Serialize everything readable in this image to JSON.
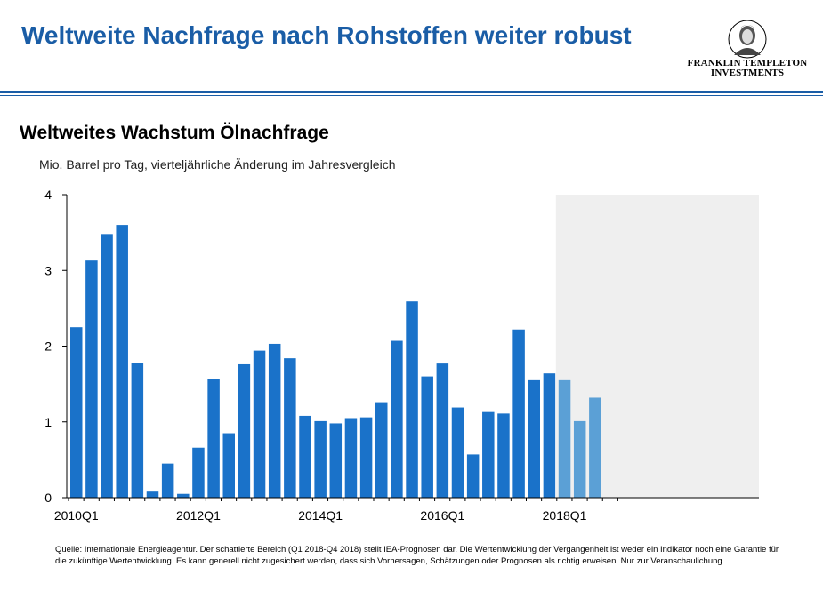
{
  "slide": {
    "title": "Weltweite Nachfrage nach Rohstoffen weiter robust"
  },
  "logo": {
    "line1": "FRANKLIN TEMPLETON",
    "line2": "INVESTMENTS"
  },
  "chart_data": {
    "type": "bar",
    "title": "Weltweites Wachstum Ölnachfrage",
    "subtitle": "Mio. Barrel pro Tag, vierteljährliche  Änderung im Jahresvergleich",
    "xlabel": "",
    "ylabel": "",
    "ylim": [
      0,
      4
    ],
    "y_ticks": [
      0,
      1,
      2,
      3,
      4
    ],
    "grid": false,
    "legend": "none",
    "x_tick_labels": [
      {
        "index": 0,
        "label": "2010Q1"
      },
      {
        "index": 8,
        "label": "2012Q1"
      },
      {
        "index": 16,
        "label": "2014Q1"
      },
      {
        "index": 24,
        "label": "2016Q1"
      },
      {
        "index": 32,
        "label": "2018Q1"
      }
    ],
    "categories": [
      "2010Q1",
      "2010Q2",
      "2010Q3",
      "2010Q4",
      "2011Q1",
      "2011Q2",
      "2011Q3",
      "2011Q4",
      "2012Q1",
      "2012Q2",
      "2012Q3",
      "2012Q4",
      "2013Q1",
      "2013Q2",
      "2013Q3",
      "2013Q4",
      "2014Q1",
      "2014Q2",
      "2014Q3",
      "2014Q4",
      "2015Q1",
      "2015Q2",
      "2015Q3",
      "2015Q4",
      "2016Q1",
      "2016Q2",
      "2016Q3",
      "2016Q4",
      "2017Q1",
      "2017Q2",
      "2017Q3",
      "2017Q4",
      "2018Q1",
      "2018Q2",
      "2018Q3"
    ],
    "values": [
      2.25,
      3.13,
      3.48,
      3.6,
      1.78,
      0.08,
      0.45,
      0.05,
      0.66,
      1.57,
      0.85,
      1.76,
      1.94,
      2.03,
      1.84,
      1.08,
      1.01,
      0.98,
      1.05,
      1.06,
      1.26,
      2.07,
      2.59,
      1.6,
      1.77,
      1.19,
      0.57,
      1.13,
      1.11,
      2.22,
      1.55,
      1.64,
      1.55,
      1.01,
      1.32
    ],
    "forecast_from_index": 32,
    "colors": {
      "actual": "#1a72c9",
      "forecast": "#5ba0d6",
      "forecast_shading": "#efefef",
      "axis": "#000000"
    }
  },
  "footnote": "Quelle: Internationale  Energieagentur. Der schattierte  Bereich  (Q1 2018-Q4 2018) stellt  IEA-Prognosen dar. Die Wertentwicklung  der Vergangenheit ist weder ein Indikator noch eine Garantie  für die zukünftige  Wertentwicklung.  Es kann generell nicht zugesichert werden, dass sich Vorhersagen, Schätzungen oder Prognosen als richtig erweisen. Nur zur Veranschaulichung.",
  "brand_colors": {
    "title_blue": "#1a5da6"
  }
}
